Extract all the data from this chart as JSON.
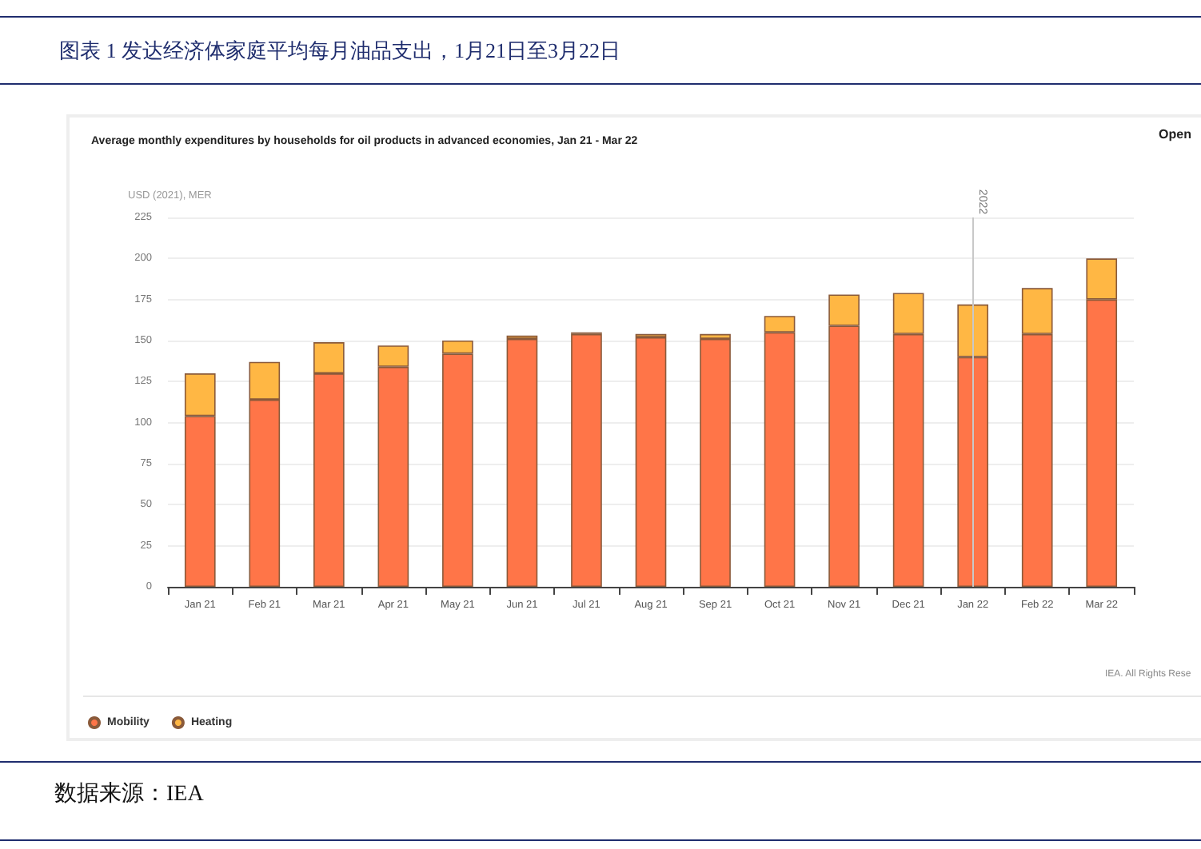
{
  "chart_data": {
    "type": "bar",
    "title": "图表 1 发达经济体家庭平均每月油品支出，1月21日至3月22日",
    "subtitle": "Average monthly expenditures by households for oil products in advanced economies, Jan 21 - Mar 22",
    "ylabel": "USD (2021), MER",
    "categories": [
      "Jan 21",
      "Feb 21",
      "Mar 21",
      "Apr 21",
      "May 21",
      "Jun 21",
      "Jul 21",
      "Aug 21",
      "Sep 21",
      "Oct 21",
      "Nov 21",
      "Dec 21",
      "Jan 22",
      "Feb 22",
      "Mar 22"
    ],
    "series": [
      {
        "name": "Mobility",
        "color": "#ff7548",
        "values": [
          104,
          114,
          130,
          134,
          142,
          151,
          154,
          152,
          151,
          155,
          159,
          154,
          140,
          154,
          175
        ]
      },
      {
        "name": "Heating",
        "color": "#ffb744",
        "values": [
          26,
          23,
          19,
          13,
          8,
          2,
          1,
          2,
          3,
          10,
          19,
          25,
          32,
          28,
          25
        ]
      }
    ],
    "stacked": true,
    "ylim": [
      0,
      225
    ],
    "yticks": [
      0,
      25,
      50,
      75,
      100,
      125,
      150,
      175,
      200,
      225
    ],
    "grid": "y",
    "legend": "bottom left",
    "ref_lines": [
      {
        "axis": "x",
        "value": "Jan 22",
        "label": "2022",
        "color": "#c8c8c8"
      }
    ],
    "annotations": [
      "Open",
      "IEA. All Rights Rese",
      "数据来源：IEA"
    ]
  }
}
